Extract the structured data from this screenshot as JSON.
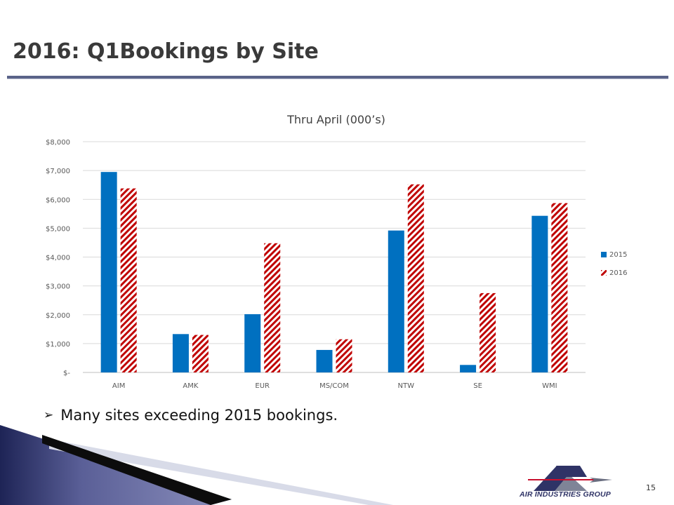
{
  "slide": {
    "title": "2016: Q1Bookings by Site",
    "bullet": "Many sites exceeding 2015 bookings.",
    "page_number": "15",
    "logo_text": "AIR INDUSTRIES GROUP"
  },
  "colors": {
    "series_2015": "#0070c0",
    "series_2016": "#c00000",
    "title_rule": "#5a6389",
    "logo_dark": "#2f3366"
  },
  "icons": {
    "bullet": "right-arrowhead-icon",
    "logo": "jet-triangle-logo-icon"
  },
  "chart_data": {
    "type": "bar",
    "title": "Thru April (000’s)",
    "categories": [
      "AIM",
      "AMK",
      "EUR",
      "MS/COM",
      "NTW",
      "SE",
      "WMI"
    ],
    "series": [
      {
        "name": "2015",
        "values": [
          6950,
          1330,
          2020,
          780,
          4920,
          260,
          5430
        ],
        "pattern": "solid"
      },
      {
        "name": "2016",
        "values": [
          6380,
          1300,
          4480,
          1150,
          6520,
          2750,
          5870
        ],
        "pattern": "diagonal-hatch"
      }
    ],
    "yticks": [
      "$-",
      "$1,000",
      "$2,000",
      "$3,000",
      "$4,000",
      "$5,000",
      "$6,000",
      "$7,000",
      "$8,000"
    ],
    "ylim": [
      0,
      8000
    ],
    "grid": true,
    "legend": "right"
  }
}
